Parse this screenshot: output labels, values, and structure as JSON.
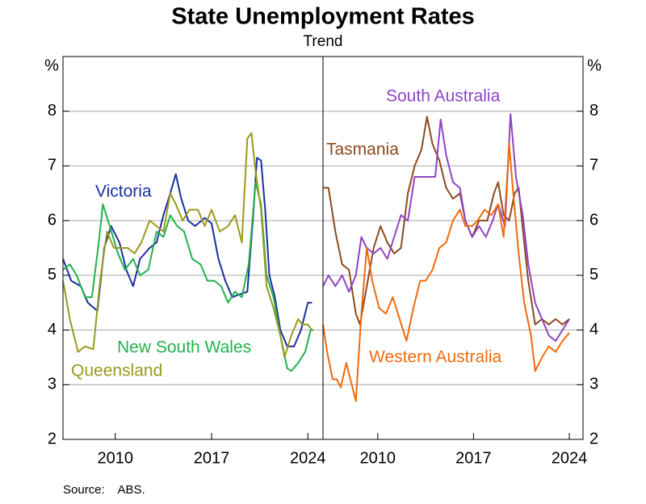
{
  "title": "State Unemployment Rates",
  "subtitle": "Trend",
  "source": "Source:    ABS.",
  "chart_data": [
    {
      "type": "line",
      "y_label": "%",
      "ylim": [
        2,
        9
      ],
      "yticks": [
        2,
        3,
        4,
        5,
        6,
        7,
        8
      ],
      "xlim": [
        2006.2,
        2025.1
      ],
      "xticks": [
        2010,
        2017,
        2024
      ],
      "grid": true,
      "y_axis_side": "left",
      "series": [
        {
          "name": "Victoria",
          "color": "#1c2f9e",
          "x": [
            2006.2,
            2006.8,
            2007.5,
            2008,
            2008.7,
            2009.2,
            2009.7,
            2010.3,
            2010.8,
            2011.3,
            2011.8,
            2012.5,
            2013,
            2013.5,
            2014,
            2014.4,
            2014.8,
            2015.3,
            2015.8,
            2016.5,
            2017,
            2017.5,
            2018,
            2018.5,
            2019,
            2019.6,
            2020,
            2020.3,
            2020.6,
            2020.9,
            2021.2,
            2021.6,
            2022,
            2022.5,
            2023,
            2023.5,
            2024,
            2024.3
          ],
          "values": [
            5.3,
            4.9,
            4.8,
            4.5,
            4.35,
            5.5,
            5.9,
            5.6,
            5.1,
            4.8,
            5.3,
            5.5,
            5.6,
            6.1,
            6.5,
            6.85,
            6.4,
            6.0,
            5.9,
            6.05,
            5.95,
            5.3,
            4.9,
            4.6,
            4.65,
            4.7,
            6.0,
            7.15,
            7.1,
            6.2,
            5.0,
            4.6,
            4.0,
            3.7,
            3.7,
            4.0,
            4.5,
            4.5
          ]
        },
        {
          "name": "New South Wales",
          "color": "#22b24c",
          "x": [
            2006.2,
            2006.7,
            2007.2,
            2007.8,
            2008.3,
            2008.8,
            2009.1,
            2009.6,
            2010.2,
            2010.7,
            2011.3,
            2011.8,
            2012.4,
            2013,
            2013.5,
            2014,
            2014.5,
            2015,
            2015.6,
            2016.2,
            2016.7,
            2017.2,
            2017.7,
            2018.2,
            2018.7,
            2019.2,
            2019.7,
            2020.2,
            2020.6,
            2021,
            2021.5,
            2022,
            2022.5,
            2022.8,
            2023.3,
            2023.8,
            2024.2,
            2024.4
          ],
          "values": [
            5.1,
            5.2,
            5.0,
            4.6,
            4.6,
            5.6,
            6.3,
            5.9,
            5.4,
            5.1,
            5.3,
            5.0,
            5.1,
            5.8,
            5.7,
            6.1,
            5.9,
            5.8,
            5.3,
            5.2,
            4.9,
            4.9,
            4.8,
            4.5,
            4.7,
            4.6,
            5.2,
            6.7,
            6.3,
            5.0,
            4.6,
            3.9,
            3.3,
            3.25,
            3.4,
            3.6,
            4.0,
            4.0
          ]
        },
        {
          "name": "Queensland",
          "color": "#9a9a1c",
          "x": [
            2006.2,
            2006.7,
            2007.3,
            2007.8,
            2008.4,
            2008.9,
            2009.4,
            2009.9,
            2010.4,
            2010.9,
            2011.4,
            2011.9,
            2012.5,
            2013,
            2013.5,
            2014,
            2014.4,
            2014.9,
            2015.4,
            2016,
            2016.5,
            2017,
            2017.6,
            2018.2,
            2018.7,
            2019.2,
            2019.6,
            2019.9,
            2020.2,
            2020.6,
            2021,
            2021.5,
            2022,
            2022.3,
            2022.8,
            2023.3,
            2023.6,
            2024,
            2024.3
          ],
          "values": [
            4.9,
            4.2,
            3.6,
            3.7,
            3.65,
            4.9,
            5.8,
            5.5,
            5.5,
            5.5,
            5.4,
            5.6,
            6.0,
            5.9,
            5.8,
            6.5,
            6.3,
            6.0,
            6.2,
            6.2,
            5.9,
            6.2,
            5.8,
            5.9,
            6.1,
            5.6,
            7.5,
            7.6,
            6.9,
            6.2,
            4.8,
            4.4,
            3.9,
            3.5,
            3.9,
            4.2,
            4.1,
            4.1,
            4.0
          ]
        }
      ]
    },
    {
      "type": "line",
      "y_label": "%",
      "ylim": [
        2,
        9
      ],
      "yticks": [
        2,
        3,
        4,
        5,
        6,
        7,
        8
      ],
      "xlim": [
        2006,
        2025
      ],
      "xticks": [
        2010,
        2017,
        2024
      ],
      "grid": true,
      "y_axis_side": "right",
      "series": [
        {
          "name": "Tasmania",
          "color": "#8b4a1e",
          "x": [
            2006,
            2006.4,
            2006.9,
            2007.4,
            2007.9,
            2008.4,
            2008.7,
            2009.2,
            2009.7,
            2010.2,
            2010.7,
            2011.2,
            2011.7,
            2012.2,
            2012.7,
            2013.2,
            2013.6,
            2014,
            2014.5,
            2015,
            2015.5,
            2016,
            2016.4,
            2016.9,
            2017.4,
            2018,
            2018.5,
            2018.8,
            2019.2,
            2019.6,
            2020,
            2020.3,
            2020.7,
            2021,
            2021.5,
            2022,
            2022.5,
            2023,
            2023.5,
            2024
          ],
          "values": [
            6.6,
            6.6,
            5.8,
            5.2,
            5.1,
            4.3,
            4.1,
            4.8,
            5.5,
            5.9,
            5.6,
            5.4,
            5.5,
            6.5,
            7.0,
            7.3,
            7.9,
            7.4,
            7.1,
            6.6,
            6.4,
            6.5,
            6.0,
            5.7,
            6.0,
            6.0,
            6.5,
            6.7,
            6.1,
            6.0,
            6.5,
            6.6,
            5.6,
            4.9,
            4.1,
            4.2,
            4.1,
            4.2,
            4.1,
            4.2
          ]
        },
        {
          "name": "South Australia",
          "color": "#8e44c4",
          "x": [
            2006,
            2006.4,
            2006.9,
            2007.4,
            2007.9,
            2008.4,
            2008.8,
            2009.2,
            2009.7,
            2010.2,
            2010.7,
            2011.2,
            2011.7,
            2012.2,
            2012.7,
            2013.2,
            2013.7,
            2014.2,
            2014.6,
            2015,
            2015.5,
            2016,
            2016.4,
            2016.9,
            2017.4,
            2017.9,
            2018.4,
            2018.8,
            2019.3,
            2019.7,
            2020.1,
            2020.6,
            2021,
            2021.5,
            2022,
            2022.5,
            2023,
            2023.5,
            2024
          ],
          "values": [
            4.8,
            5.0,
            4.8,
            5.0,
            4.7,
            5.0,
            5.7,
            5.5,
            5.4,
            5.5,
            5.3,
            5.7,
            6.1,
            6.0,
            6.8,
            6.8,
            6.8,
            6.8,
            7.85,
            7.2,
            6.7,
            6.6,
            6.0,
            5.7,
            5.9,
            5.7,
            6.0,
            6.3,
            5.9,
            7.95,
            6.8,
            6.1,
            5.2,
            4.5,
            4.2,
            3.9,
            3.8,
            4.0,
            4.2
          ]
        },
        {
          "name": "Western Australia",
          "color": "#f06a0c",
          "x": [
            2006,
            2006.3,
            2006.7,
            2007,
            2007.3,
            2007.7,
            2008.2,
            2008.4,
            2008.8,
            2009.2,
            2009.6,
            2010.1,
            2010.6,
            2011.1,
            2011.6,
            2012.1,
            2012.6,
            2013.1,
            2013.5,
            2014,
            2014.5,
            2015,
            2015.5,
            2016,
            2016.4,
            2016.9,
            2017.3,
            2017.8,
            2018.3,
            2018.8,
            2019.2,
            2019.6,
            2019.9,
            2020.3,
            2020.7,
            2021.2,
            2021.5,
            2022,
            2022.5,
            2023,
            2023.5,
            2024
          ],
          "values": [
            4.1,
            3.6,
            3.1,
            3.1,
            2.95,
            3.4,
            2.9,
            2.7,
            4.3,
            5.5,
            4.9,
            4.4,
            4.3,
            4.6,
            4.2,
            3.8,
            4.4,
            4.9,
            4.9,
            5.1,
            5.5,
            5.6,
            6.0,
            6.2,
            5.9,
            5.9,
            6.0,
            6.2,
            6.1,
            6.3,
            5.7,
            7.4,
            6.5,
            5.4,
            4.5,
            3.9,
            3.25,
            3.5,
            3.7,
            3.6,
            3.8,
            3.95
          ]
        }
      ]
    }
  ]
}
